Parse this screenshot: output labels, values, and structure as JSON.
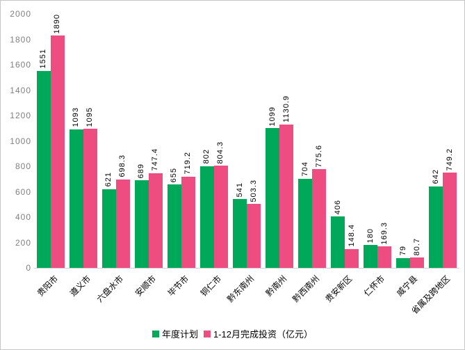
{
  "chart": {
    "background": "#ffffff",
    "border_color": "#c6c6c6",
    "axis_line_color": "#d4d4d4",
    "tick_label_color": "#7f7f7f",
    "value_label_color": "#000000"
  },
  "chart_data": {
    "type": "bar",
    "categories": [
      "贵阳市",
      "遵义市",
      "六盘水市",
      "安顺市",
      "毕节市",
      "铜仁市",
      "黔东南州",
      "黔南州",
      "黔西南州",
      "贵安新区",
      "仁怀市",
      "威宁县",
      "省属及跨地区"
    ],
    "series": [
      {
        "name": "年度计划",
        "color": "#00a859",
        "values": [
          1551,
          1093,
          621,
          689,
          655,
          802,
          541,
          1099,
          704,
          406,
          180,
          79,
          642
        ]
      },
      {
        "name": "1-12月完成投资（亿元）",
        "color": "#ee4d82",
        "values": [
          1890,
          1095,
          698.3,
          747.4,
          719.2,
          804.3,
          503.3,
          1130.9,
          775.6,
          148.4,
          169.3,
          80.7,
          749.2
        ]
      }
    ],
    "ylim": [
      0,
      2000
    ],
    "yticks": [
      0,
      200,
      400,
      600,
      800,
      1000,
      1200,
      1400,
      1600,
      1800,
      2000
    ],
    "grid": false,
    "legend_position": "bottom",
    "bar_value_labels": "vertical-rotated"
  }
}
